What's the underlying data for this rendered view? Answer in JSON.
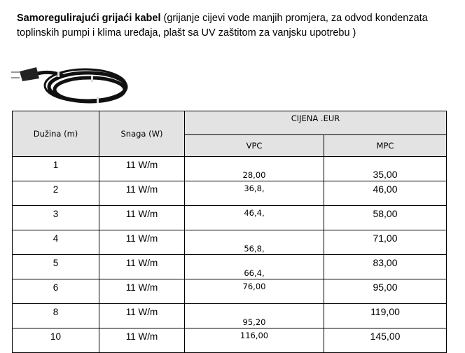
{
  "intro": {
    "title": "Samoregulirajući grijaći kabel",
    "description": " (grijanje cijevi vode manjih promjera, za odvod kondenzata toplinskih pumpi i klima uređaja, plašt sa UV zaštitom za vanjsku upotrebu )"
  },
  "image": {
    "icon": "heating-cable-photo"
  },
  "table": {
    "headers": {
      "length": "Dužina (m)",
      "power": "Snaga (W)",
      "price_group": "CIJENA  .EUR",
      "vpc": "VPC",
      "mpc": "MPC"
    },
    "rows": [
      {
        "length": "1",
        "power": "11 W/m",
        "vpc": "28,00",
        "mpc": "35,00"
      },
      {
        "length": "2",
        "power": "11 W/m",
        "vpc": "36,8,",
        "mpc": "46,00"
      },
      {
        "length": "3",
        "power": "11 W/m",
        "vpc": "46,4,",
        "mpc": "58,00"
      },
      {
        "length": "4",
        "power": "11 W/m",
        "vpc": "56,8,",
        "mpc": "71,00"
      },
      {
        "length": "5",
        "power": "11 W/m",
        "vpc": "66,4,",
        "mpc": "83,00"
      },
      {
        "length": "6",
        "power": "11 W/m",
        "vpc": "76,00",
        "mpc": "95,00"
      },
      {
        "length": "8",
        "power": "11 W/m",
        "vpc": "95,20",
        "mpc": "119,00"
      },
      {
        "length": "10",
        "power": "11 W/m",
        "vpc": "116,00",
        "mpc": "145,00"
      }
    ]
  }
}
